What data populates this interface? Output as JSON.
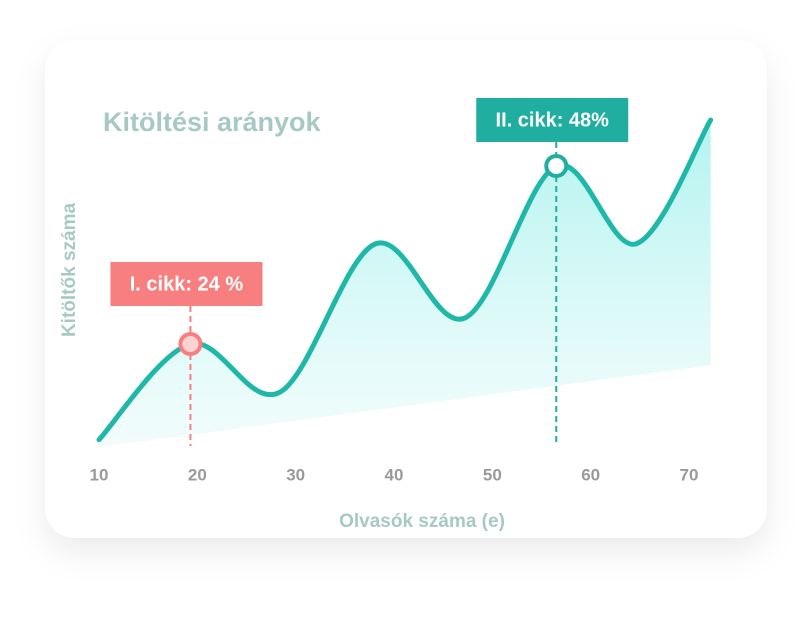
{
  "chart_data": {
    "type": "line",
    "title": "Kitöltési arányok",
    "xlabel": "Olvasók száma (e)",
    "ylabel": "Kitöltők száma",
    "x": [
      10,
      19.3,
      28.4,
      38.1,
      47.2,
      56.5,
      64.6,
      72.2
    ],
    "values": [
      11.1,
      24,
      17.5,
      37.5,
      27.5,
      48,
      37.5,
      54.2
    ],
    "color": "#1fb8a8",
    "xlim": [
      10,
      70
    ],
    "xticks": [
      10,
      20,
      30,
      40,
      50,
      60,
      70
    ],
    "ylim": [
      0,
      60
    ],
    "annotations": [
      {
        "text": "I. cikk: 24 %",
        "x": 19.3,
        "y": 24,
        "color": "#f87f7f"
      },
      {
        "text": "II. cikk: 48%",
        "x": 56.5,
        "y": 48,
        "color": "#20aea0"
      }
    ]
  }
}
